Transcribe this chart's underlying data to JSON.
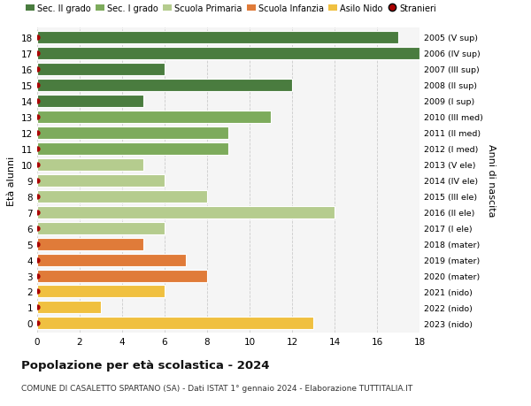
{
  "ages": [
    18,
    17,
    16,
    15,
    14,
    13,
    12,
    11,
    10,
    9,
    8,
    7,
    6,
    5,
    4,
    3,
    2,
    1,
    0
  ],
  "right_labels": [
    "2005 (V sup)",
    "2006 (IV sup)",
    "2007 (III sup)",
    "2008 (II sup)",
    "2009 (I sup)",
    "2010 (III med)",
    "2011 (II med)",
    "2012 (I med)",
    "2013 (V ele)",
    "2014 (IV ele)",
    "2015 (III ele)",
    "2016 (II ele)",
    "2017 (I ele)",
    "2018 (mater)",
    "2019 (mater)",
    "2020 (mater)",
    "2021 (nido)",
    "2022 (nido)",
    "2023 (nido)"
  ],
  "values": [
    17,
    18,
    6,
    12,
    5,
    11,
    9,
    9,
    5,
    6,
    8,
    14,
    6,
    5,
    7,
    8,
    6,
    3,
    13
  ],
  "colors": [
    "#4a7c3f",
    "#4a7c3f",
    "#4a7c3f",
    "#4a7c3f",
    "#4a7c3f",
    "#7dab5c",
    "#7dab5c",
    "#7dab5c",
    "#b5cc8e",
    "#b5cc8e",
    "#b5cc8e",
    "#b5cc8e",
    "#b5cc8e",
    "#e07b39",
    "#e07b39",
    "#e07b39",
    "#f0c040",
    "#f0c040",
    "#f0c040"
  ],
  "legend_labels": [
    "Sec. II grado",
    "Sec. I grado",
    "Scuola Primaria",
    "Scuola Infanzia",
    "Asilo Nido",
    "Stranieri"
  ],
  "legend_colors": [
    "#4a7c3f",
    "#7dab5c",
    "#b5cc8e",
    "#e07b39",
    "#f0c040",
    "#aa0000"
  ],
  "ylabel": "Età alunni",
  "ylabel_right": "Anni di nascita",
  "title": "Popolazione per età scolastica - 2024",
  "subtitle": "COMUNE DI CASALETTO SPARTANO (SA) - Dati ISTAT 1° gennaio 2024 - Elaborazione TUTTITALIA.IT",
  "xlim": [
    0,
    18
  ],
  "xticks": [
    0,
    2,
    4,
    6,
    8,
    10,
    12,
    14,
    16,
    18
  ],
  "background_color": "#ffffff",
  "bar_edge_color": "#ffffff",
  "stranieri_color": "#aa0000",
  "grid_color": "#cccccc",
  "axes_bg": "#f5f5f5"
}
